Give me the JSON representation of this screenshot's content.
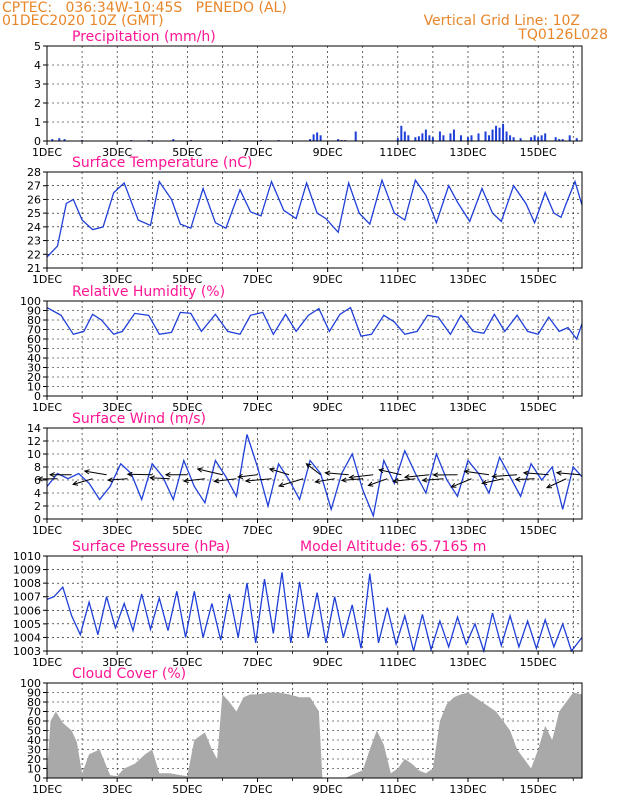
{
  "header": {
    "line1": "CPTEC:   036:34W-10:45S   PENEDO (AL)",
    "line2": "01DEC2020 10Z (GMT)",
    "grid_note": "Vertical Grid Line: 10Z",
    "code": "TQ0126L028"
  },
  "colors": {
    "header": "#e8862a",
    "panel_title": "#ff1493",
    "series": "#1f3fd9",
    "cloud": "#a9a9a9",
    "wind_vector": "#000000"
  },
  "chart_data": [
    {
      "type": "bar",
      "title": "Precipitation (mm/h)",
      "x_ticks": [
        "1DEC",
        "3DEC",
        "5DEC",
        "7DEC",
        "9DEC",
        "11DEC",
        "13DEC",
        "15DEC"
      ],
      "xlim_days": [
        0,
        15.25
      ],
      "ylim": [
        0,
        5
      ],
      "y_ticks": [
        0,
        1,
        2,
        3,
        4,
        5
      ],
      "grid": "dashed",
      "x_days": [
        0.15,
        0.35,
        0.5,
        1.0,
        2.4,
        2.9,
        3.6,
        4.1,
        5.2,
        6.1,
        6.6,
        7.5,
        7.6,
        7.7,
        7.8,
        8.3,
        8.4,
        8.5,
        8.8,
        10.0,
        10.1,
        10.2,
        10.3,
        10.5,
        10.6,
        10.7,
        10.8,
        10.9,
        11.0,
        11.2,
        11.3,
        11.5,
        11.6,
        11.8,
        12.0,
        12.1,
        12.3,
        12.5,
        12.6,
        12.7,
        12.8,
        12.9,
        13.0,
        13.1,
        13.2,
        13.3,
        13.5,
        13.8,
        13.9,
        14.0,
        14.1,
        14.2,
        14.5,
        14.6,
        14.7,
        14.9,
        15.1
      ],
      "values": [
        0.1,
        0.15,
        0.1,
        0.05,
        0.05,
        0.05,
        0.1,
        0.05,
        0.05,
        0.05,
        0.05,
        0.1,
        0.35,
        0.45,
        0.3,
        0.1,
        0.05,
        0.05,
        0.5,
        0.15,
        0.8,
        0.5,
        0.3,
        0.2,
        0.25,
        0.4,
        0.6,
        0.3,
        0.2,
        0.5,
        0.3,
        0.4,
        0.6,
        0.3,
        0.2,
        0.3,
        0.4,
        0.5,
        0.3,
        0.6,
        0.8,
        0.7,
        0.9,
        0.5,
        0.3,
        0.2,
        0.15,
        0.2,
        0.3,
        0.2,
        0.3,
        0.4,
        0.2,
        0.1,
        0.1,
        0.3,
        0.15
      ]
    },
    {
      "type": "line",
      "title": "Surface Temperature (nC)",
      "x_ticks": [
        "1DEC",
        "3DEC",
        "5DEC",
        "7DEC",
        "9DEC",
        "11DEC",
        "13DEC",
        "15DEC"
      ],
      "xlim_days": [
        0,
        15.25
      ],
      "ylim": [
        21,
        28
      ],
      "y_ticks": [
        21,
        22,
        23,
        24,
        25,
        26,
        27,
        28
      ],
      "grid": "dashed",
      "x_days": [
        0,
        0.3,
        0.55,
        0.75,
        1.0,
        1.3,
        1.6,
        1.9,
        2.2,
        2.6,
        2.95,
        3.2,
        3.55,
        3.8,
        4.1,
        4.45,
        4.8,
        5.1,
        5.5,
        5.8,
        6.1,
        6.4,
        6.75,
        7.1,
        7.4,
        7.7,
        7.95,
        8.3,
        8.6,
        8.9,
        9.2,
        9.55,
        9.9,
        10.2,
        10.5,
        10.8,
        11.1,
        11.45,
        11.7,
        12.05,
        12.4,
        12.7,
        12.95,
        13.3,
        13.65,
        13.9,
        14.2,
        14.45,
        14.65,
        14.8,
        15.05,
        15.25
      ],
      "values": [
        21.8,
        22.6,
        25.7,
        26.0,
        24.5,
        23.8,
        24.0,
        26.5,
        27.2,
        24.5,
        24.1,
        27.3,
        26.0,
        24.2,
        23.9,
        26.8,
        24.3,
        23.9,
        26.7,
        25.1,
        24.8,
        27.3,
        25.2,
        24.6,
        27.2,
        25.0,
        24.6,
        23.6,
        27.2,
        25.0,
        24.2,
        27.4,
        25.0,
        24.5,
        27.4,
        26.3,
        24.3,
        27.0,
        25.8,
        24.4,
        26.8,
        25.0,
        24.4,
        27.0,
        25.7,
        24.3,
        26.5,
        25.0,
        24.7,
        25.7,
        27.3,
        25.6
      ]
    },
    {
      "type": "line",
      "title": "Relative Humidity (%)",
      "x_ticks": [
        "1DEC",
        "3DEC",
        "5DEC",
        "7DEC",
        "9DEC",
        "11DEC",
        "13DEC",
        "15DEC"
      ],
      "xlim_days": [
        0,
        15.25
      ],
      "ylim": [
        0,
        100
      ],
      "y_ticks": [
        0,
        10,
        20,
        30,
        40,
        50,
        60,
        70,
        80,
        90,
        100
      ],
      "grid": "dashed",
      "x_days": [
        0,
        0.4,
        0.75,
        1.05,
        1.3,
        1.55,
        1.9,
        2.15,
        2.5,
        2.9,
        3.2,
        3.55,
        3.8,
        4.1,
        4.4,
        4.8,
        5.15,
        5.5,
        5.8,
        6.15,
        6.45,
        6.8,
        7.1,
        7.45,
        7.75,
        8.05,
        8.35,
        8.65,
        8.95,
        9.25,
        9.6,
        9.9,
        10.2,
        10.55,
        10.85,
        11.15,
        11.5,
        11.8,
        12.15,
        12.45,
        12.75,
        13.05,
        13.4,
        13.7,
        14.0,
        14.3,
        14.6,
        14.85,
        15.1,
        15.25
      ],
      "values": [
        93,
        85,
        65,
        68,
        86,
        80,
        65,
        68,
        87,
        85,
        65,
        67,
        88,
        87,
        68,
        86,
        68,
        65,
        85,
        88,
        65,
        86,
        68,
        85,
        92,
        68,
        86,
        93,
        63,
        65,
        85,
        78,
        65,
        68,
        85,
        83,
        65,
        85,
        68,
        66,
        86,
        68,
        85,
        68,
        65,
        83,
        68,
        72,
        60,
        76
      ]
    },
    {
      "type": "line",
      "title": "Surface Wind (m/s)",
      "x_ticks": [
        "1DEC",
        "3DEC",
        "5DEC",
        "7DEC",
        "9DEC",
        "11DEC",
        "13DEC",
        "15DEC"
      ],
      "xlim_days": [
        0,
        15.25
      ],
      "ylim": [
        0,
        14
      ],
      "y_ticks": [
        0,
        2,
        4,
        6,
        8,
        10,
        12,
        14
      ],
      "grid": "dashed",
      "x_days": [
        0,
        0.3,
        0.6,
        0.9,
        1.2,
        1.5,
        1.8,
        2.1,
        2.4,
        2.7,
        3.0,
        3.3,
        3.6,
        3.9,
        4.2,
        4.5,
        4.8,
        5.1,
        5.4,
        5.7,
        6.0,
        6.3,
        6.6,
        6.9,
        7.2,
        7.5,
        7.8,
        8.1,
        8.4,
        8.7,
        9.0,
        9.3,
        9.6,
        9.9,
        10.2,
        10.5,
        10.8,
        11.1,
        11.4,
        11.7,
        12.0,
        12.3,
        12.6,
        12.9,
        13.2,
        13.5,
        13.8,
        14.1,
        14.4,
        14.7,
        15.0,
        15.25
      ],
      "values": [
        5,
        7,
        6.2,
        7,
        5.5,
        3,
        5,
        8.5,
        7,
        3,
        8.5,
        6.5,
        3,
        9,
        5,
        2.5,
        9,
        6.5,
        3.5,
        13,
        8,
        2,
        8.5,
        6,
        3,
        9,
        7,
        1.5,
        7,
        10,
        4.5,
        0.5,
        9,
        5.5,
        10.5,
        7,
        4,
        10,
        6,
        3.5,
        9,
        7,
        4,
        9.5,
        6.5,
        3.5,
        8.5,
        6,
        8,
        1.5,
        8,
        6.5
      ]
    },
    {
      "type": "line",
      "title": "Surface Pressure (hPa)",
      "annotation": "Model Altitude: 65.7165 m",
      "x_ticks": [
        "1DEC",
        "3DEC",
        "5DEC",
        "7DEC",
        "9DEC",
        "11DEC",
        "13DEC",
        "15DEC"
      ],
      "xlim_days": [
        0,
        15.25
      ],
      "ylim": [
        1003,
        1010
      ],
      "y_ticks": [
        1003,
        1004,
        1005,
        1006,
        1007,
        1008,
        1009,
        1010
      ],
      "grid": "dashed",
      "x_days": [
        0,
        0.2,
        0.45,
        0.7,
        0.95,
        1.2,
        1.45,
        1.7,
        1.95,
        2.2,
        2.45,
        2.7,
        2.95,
        3.2,
        3.45,
        3.7,
        3.95,
        4.2,
        4.45,
        4.7,
        4.95,
        5.2,
        5.45,
        5.7,
        5.95,
        6.2,
        6.45,
        6.7,
        6.95,
        7.2,
        7.45,
        7.7,
        7.95,
        8.2,
        8.45,
        8.7,
        8.95,
        9.2,
        9.45,
        9.7,
        9.95,
        10.2,
        10.45,
        10.7,
        10.95,
        11.2,
        11.45,
        11.7,
        11.95,
        12.2,
        12.45,
        12.7,
        12.95,
        13.2,
        13.45,
        13.7,
        13.95,
        14.2,
        14.45,
        14.7,
        14.95,
        15.25
      ],
      "values": [
        1006.8,
        1007.0,
        1007.7,
        1005.6,
        1004.2,
        1006.6,
        1004.2,
        1007.0,
        1004.7,
        1006.5,
        1004.5,
        1007.2,
        1004.6,
        1006.9,
        1004.5,
        1007.4,
        1004.0,
        1007.4,
        1004.0,
        1006.5,
        1003.8,
        1007.2,
        1004.0,
        1008.0,
        1003.6,
        1008.3,
        1004.3,
        1008.8,
        1003.6,
        1008.1,
        1004.0,
        1007.3,
        1003.6,
        1007.0,
        1004.0,
        1006.4,
        1003.2,
        1008.7,
        1003.6,
        1006.2,
        1003.5,
        1005.6,
        1003.0,
        1005.7,
        1003.1,
        1005.2,
        1003.3,
        1005.5,
        1003.5,
        1005.0,
        1003.0,
        1005.8,
        1003.4,
        1005.6,
        1003.3,
        1005.2,
        1003.2,
        1005.3,
        1003.3,
        1005.0,
        1003.0,
        1004.0
      ]
    },
    {
      "type": "area",
      "title": "Cloud Cover (%)",
      "x_ticks": [
        "1DEC",
        "3DEC",
        "5DEC",
        "7DEC",
        "9DEC",
        "11DEC",
        "13DEC",
        "15DEC"
      ],
      "xlim_days": [
        0,
        15.25
      ],
      "ylim": [
        0,
        100
      ],
      "y_ticks": [
        0,
        10,
        20,
        30,
        40,
        50,
        60,
        70,
        80,
        90,
        100
      ],
      "grid": "dashed",
      "x_days": [
        0,
        0.1,
        0.25,
        0.45,
        0.7,
        0.85,
        1.0,
        1.2,
        1.5,
        1.8,
        2.0,
        2.2,
        2.5,
        2.8,
        3.0,
        3.2,
        3.5,
        3.8,
        4.0,
        4.2,
        4.5,
        4.7,
        4.85,
        5.0,
        5.2,
        5.4,
        5.6,
        5.8,
        6.0,
        6.3,
        6.6,
        6.9,
        7.2,
        7.5,
        7.75,
        7.85,
        8.0,
        8.2,
        8.5,
        8.8,
        9.0,
        9.2,
        9.4,
        9.6,
        9.8,
        10.0,
        10.2,
        10.4,
        10.6,
        10.8,
        11.0,
        11.2,
        11.4,
        11.6,
        11.8,
        12.0,
        12.2,
        12.4,
        12.6,
        12.8,
        13.0,
        13.2,
        13.4,
        13.6,
        13.8,
        14.0,
        14.2,
        14.4,
        14.6,
        14.8,
        15.0,
        15.25
      ],
      "values": [
        5,
        60,
        70,
        58,
        50,
        38,
        5,
        25,
        30,
        3,
        2,
        10,
        15,
        25,
        30,
        5,
        5,
        3,
        2,
        40,
        48,
        30,
        20,
        88,
        80,
        70,
        85,
        88,
        88,
        90,
        90,
        88,
        85,
        85,
        70,
        0,
        0,
        0,
        0,
        5,
        8,
        30,
        50,
        35,
        5,
        10,
        20,
        15,
        8,
        5,
        10,
        60,
        78,
        85,
        88,
        90,
        85,
        80,
        75,
        70,
        60,
        50,
        30,
        20,
        10,
        30,
        55,
        40,
        70,
        80,
        90,
        88
      ]
    },
    {
      "type": "vector",
      "title": "Surface Wind direction",
      "note": "wind vectors drawn over the Surface Wind panel",
      "x_days": [
        0.3,
        0.7,
        1.3,
        1.7,
        2.3,
        3.0,
        3.5,
        4.0,
        4.5,
        5.0,
        5.4,
        6.0,
        6.4,
        6.9,
        7.3,
        7.8,
        8.2,
        8.6,
        9.0,
        9.3,
        9.7,
        10.1,
        10.5,
        10.9,
        11.3,
        11.7,
        12.1,
        12.6,
        13.0,
        13.4,
        13.9,
        14.3,
        14.8,
        15.2
      ],
      "direction_deg": [
        80,
        75,
        85,
        80,
        95,
        100,
        90,
        75,
        110,
        95,
        85,
        80,
        70,
        120,
        75,
        140,
        80,
        110,
        70,
        60,
        75,
        90,
        85,
        80,
        70,
        75,
        65,
        80,
        70,
        85,
        75,
        90,
        60,
        70
      ],
      "speed": [
        6,
        7,
        6,
        7,
        6,
        8,
        6,
        7,
        7,
        8,
        7,
        6,
        9,
        7,
        8,
        7,
        6,
        8,
        7,
        9,
        6,
        7,
        7,
        8,
        7,
        8,
        7,
        8,
        7,
        8,
        6,
        8,
        7,
        8
      ]
    }
  ]
}
